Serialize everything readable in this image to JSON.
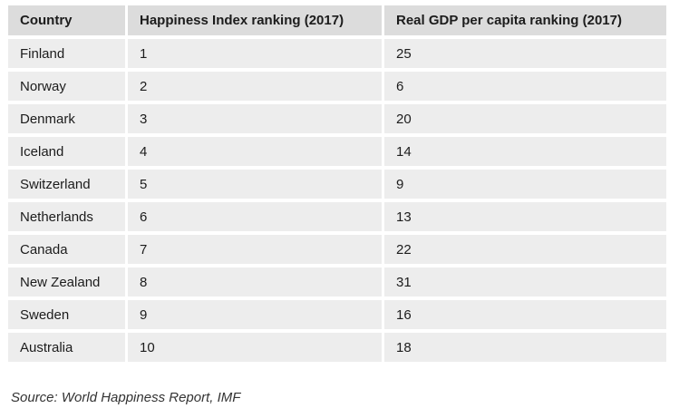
{
  "colors": {
    "header_bg": "#dcdcdc",
    "row_bg": "#ededed",
    "gap": "#ffffff",
    "text": "#1c1c1c",
    "source_text": "#333333"
  },
  "table": {
    "headers": {
      "country": "Country",
      "happiness": "Happiness Index ranking (2017)",
      "gdp": "Real GDP per capita ranking (2017)"
    },
    "rows": [
      {
        "country": "Finland",
        "happiness": "1",
        "gdp": "25"
      },
      {
        "country": "Norway",
        "happiness": "2",
        "gdp": "6"
      },
      {
        "country": "Denmark",
        "happiness": "3",
        "gdp": "20"
      },
      {
        "country": "Iceland",
        "happiness": "4",
        "gdp": "14"
      },
      {
        "country": "Switzerland",
        "happiness": "5",
        "gdp": "9"
      },
      {
        "country": "Netherlands",
        "happiness": "6",
        "gdp": "13"
      },
      {
        "country": "Canada",
        "happiness": "7",
        "gdp": "22"
      },
      {
        "country": "New Zealand",
        "happiness": "8",
        "gdp": "31"
      },
      {
        "country": "Sweden",
        "happiness": "9",
        "gdp": "16"
      },
      {
        "country": "Australia",
        "happiness": "10",
        "gdp": "18"
      }
    ]
  },
  "source_note": "Source: World Happiness Report, IMF",
  "chart_data": {
    "type": "table",
    "columns": [
      "Country",
      "Happiness Index ranking (2017)",
      "Real GDP per capita ranking (2017)"
    ],
    "rows": [
      [
        "Finland",
        1,
        25
      ],
      [
        "Norway",
        2,
        6
      ],
      [
        "Denmark",
        3,
        20
      ],
      [
        "Iceland",
        4,
        14
      ],
      [
        "Switzerland",
        5,
        9
      ],
      [
        "Netherlands",
        6,
        13
      ],
      [
        "Canada",
        7,
        22
      ],
      [
        "New Zealand",
        8,
        31
      ],
      [
        "Sweden",
        9,
        16
      ],
      [
        "Australia",
        10,
        18
      ]
    ],
    "title": "",
    "source": "Source: World Happiness Report, IMF"
  }
}
